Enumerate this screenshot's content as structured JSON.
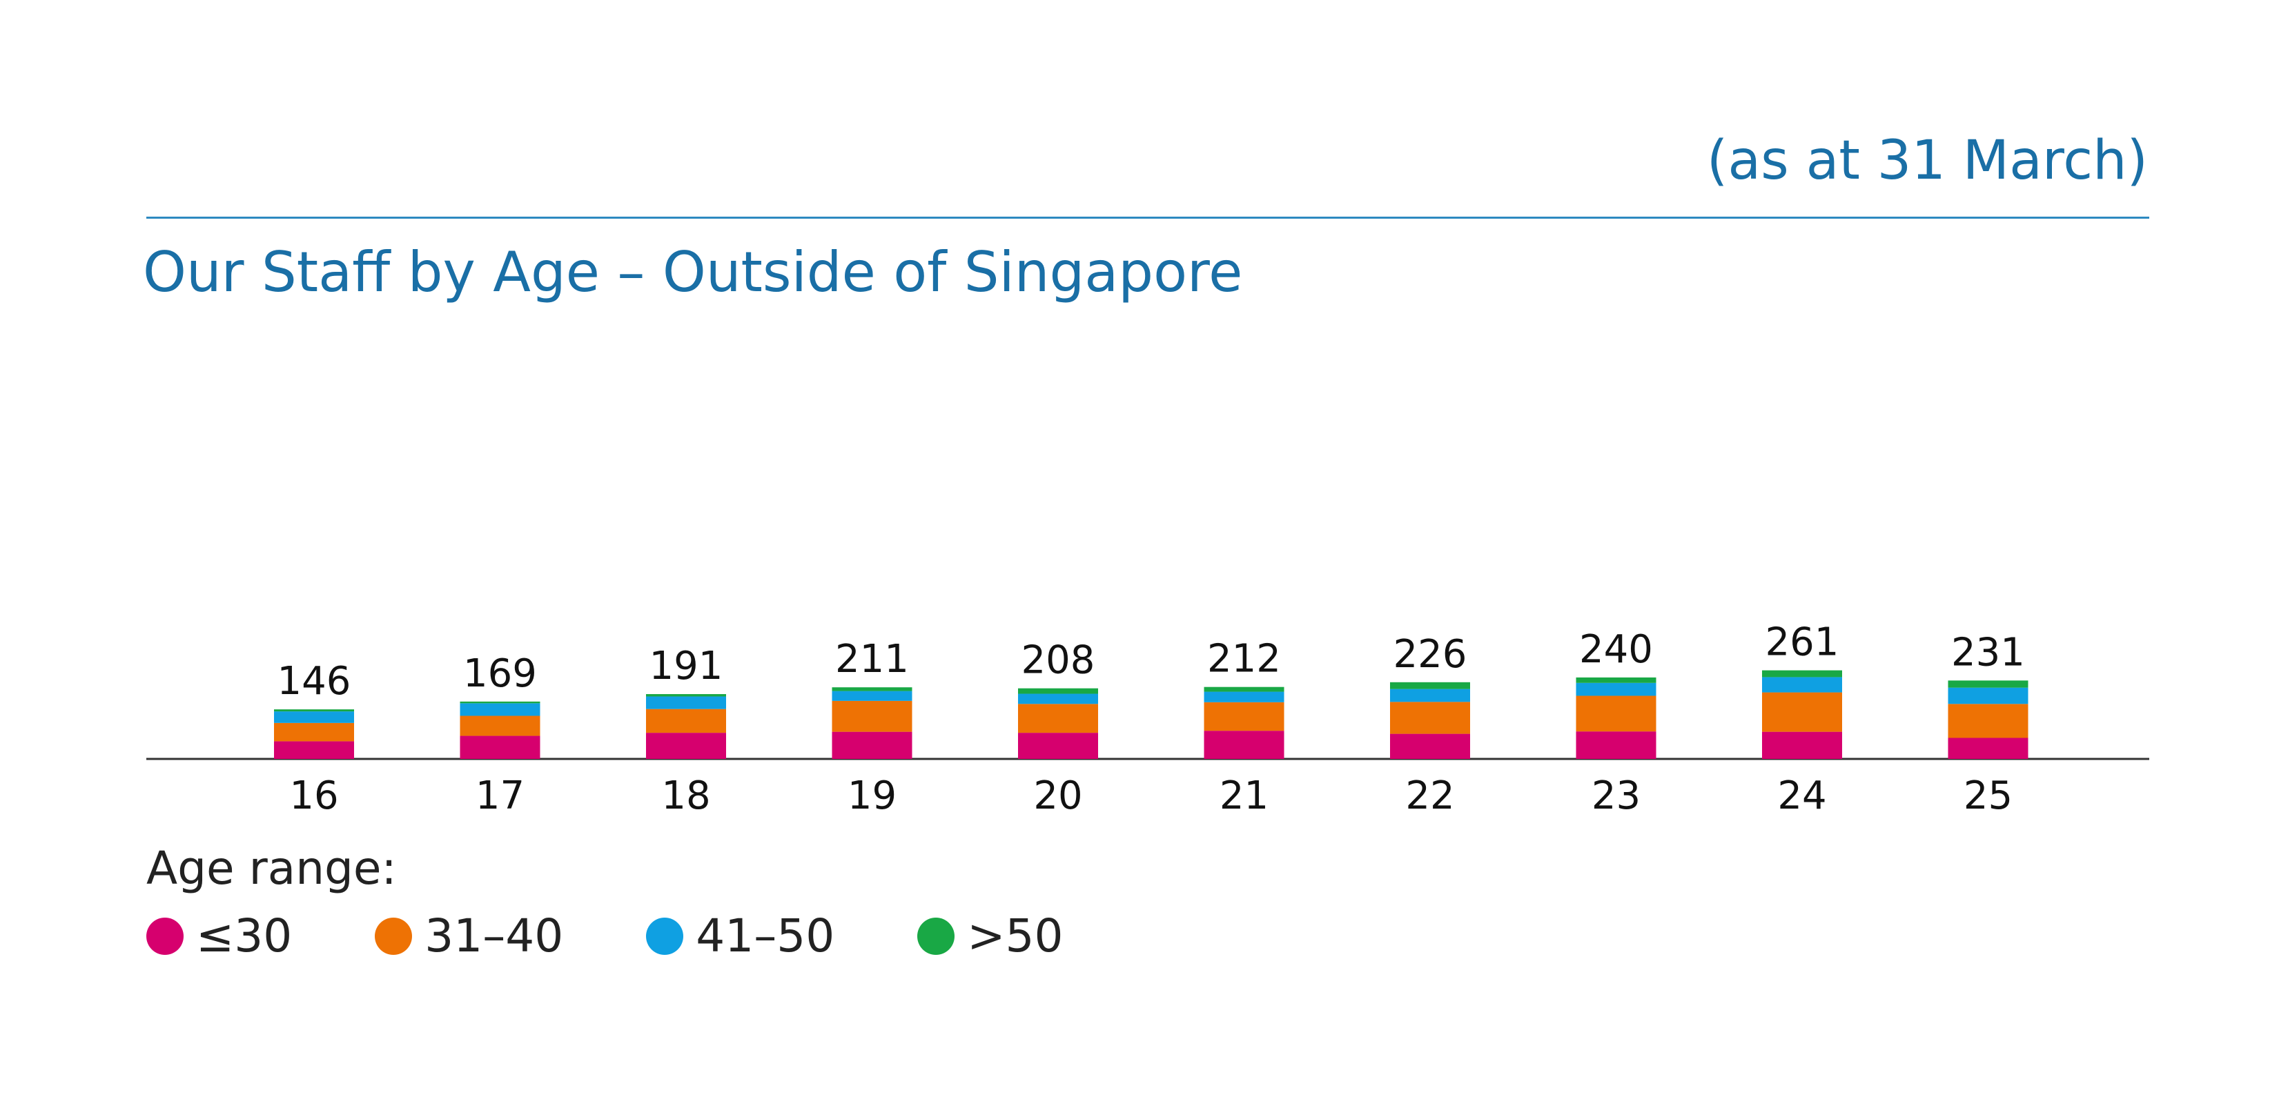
{
  "note": "(as at 31 March)",
  "title": "Our Staff by Age – Outside of Singapore",
  "legend_title": "Age range:",
  "chart_data": {
    "type": "bar",
    "stacked": true,
    "title": "Our Staff by Age – Outside of Singapore",
    "categories": [
      "16",
      "17",
      "18",
      "19",
      "20",
      "21",
      "22",
      "23",
      "24",
      "25"
    ],
    "totals": [
      146,
      169,
      191,
      211,
      208,
      212,
      226,
      240,
      261,
      231
    ],
    "series": [
      {
        "name": "≤30",
        "color": "#d6006e",
        "values": [
          52,
          68,
          77,
          80,
          77,
          83,
          74,
          81,
          80,
          62
        ]
      },
      {
        "name": "31–40",
        "color": "#ee7204",
        "values": [
          54,
          59,
          70,
          91,
          85,
          84,
          94,
          105,
          116,
          100
        ]
      },
      {
        "name": "41–50",
        "color": "#0fa0e2",
        "values": [
          34,
          37,
          37,
          29,
          30,
          31,
          38,
          38,
          45,
          48
        ]
      },
      {
        "name": ">50",
        "color": "#19a845",
        "values": [
          6,
          5,
          7,
          11,
          16,
          14,
          20,
          16,
          20,
          21
        ]
      }
    ],
    "legend_position": "bottom-left",
    "grid": false
  }
}
